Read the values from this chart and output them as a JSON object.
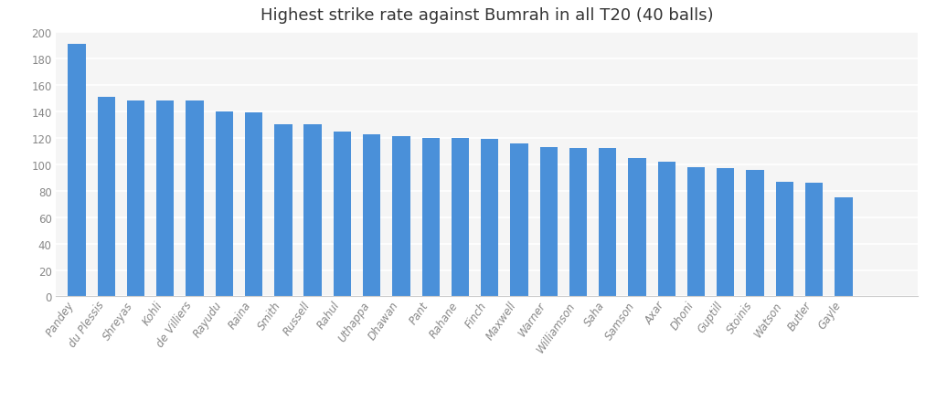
{
  "title": "Highest strike rate against Bumrah in all T20 (40 balls)",
  "categories": [
    "Pandey",
    "du Plessis",
    "Shreyas",
    "Kohli",
    "de Villiers",
    "Rayudu",
    "Raina",
    "Smith",
    "Russell",
    "Rahul",
    "Uthappa",
    "Dhawan",
    "Pant",
    "Rahane",
    "Finch",
    "Maxwell",
    "Warner",
    "Williamson",
    "Saha",
    "Samson",
    "Axar",
    "Dhoni",
    "Guptill",
    "Stoinis",
    "Watson",
    "Butler",
    "Gayle"
  ],
  "values": [
    191,
    151,
    148,
    148,
    148,
    140,
    139,
    130,
    130,
    125,
    123,
    121,
    120,
    120,
    119,
    116,
    113,
    112,
    112,
    105,
    102,
    98,
    97,
    96,
    87,
    86,
    75
  ],
  "bar_color": "#4A90D9",
  "bg_color": "#FFFFFF",
  "plot_bg_color": "#F5F5F5",
  "grid_color": "#FFFFFF",
  "ylim": [
    0,
    200
  ],
  "yticks": [
    0,
    20,
    40,
    60,
    80,
    100,
    120,
    140,
    160,
    180,
    200
  ],
  "title_fontsize": 13,
  "tick_fontsize": 8.5,
  "ytick_color": "#888888",
  "xtick_color": "#888888"
}
